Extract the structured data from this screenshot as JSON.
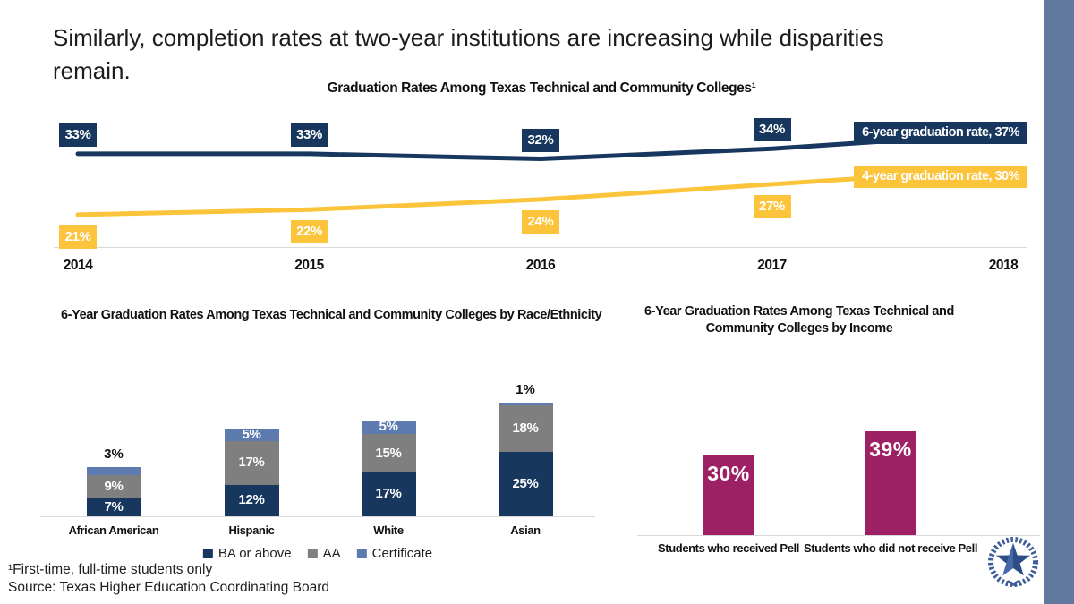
{
  "slide": {
    "title": "Similarly, completion rates at two-year institutions are increasing while disparities remain.",
    "title_lines": [
      "Similarly, completion rates at two-year institutions are increasing while disparities",
      "remain."
    ],
    "footnote": "¹First-time, full-time students only",
    "source": "Source: Texas Higher Education Coordinating Board",
    "sidebar_color": "#61789f",
    "logo_color": "#3d5c99",
    "text_color": "#111111",
    "axis_color": "#d9d9d9"
  },
  "chart_data": [
    {
      "type": "line",
      "title": "Graduation Rates Among Texas Technical and Community Colleges¹",
      "x": [
        2014,
        2015,
        2016,
        2017,
        2018
      ],
      "series": [
        {
          "name": "6-year graduation rate",
          "values": [
            33,
            33,
            32,
            34,
            37
          ],
          "color": "#17375e",
          "end_label": "6-year graduation rate, 37%"
        },
        {
          "name": "4-year graduation rate",
          "values": [
            21,
            22,
            24,
            27,
            30
          ],
          "color": "#fbc43b",
          "end_label": "4-year graduation rate, 30%"
        }
      ],
      "data_labels": "percent_boxes",
      "legend_position": "end-of-line",
      "grid": false,
      "ylim": [
        15,
        40
      ]
    },
    {
      "type": "stacked-bar",
      "title": "6-Year Graduation Rates Among Texas Technical and Community Colleges by Race/Ethnicity",
      "categories": [
        "African American",
        "Hispanic",
        "White",
        "Asian"
      ],
      "series": [
        {
          "name": "BA or above",
          "color": "#17375e",
          "values": [
            7,
            12,
            17,
            25
          ]
        },
        {
          "name": "AA",
          "color": "#7f7f7f",
          "values": [
            9,
            17,
            15,
            18
          ]
        },
        {
          "name": "Certificate",
          "color": "#5d7bae",
          "values": [
            3,
            5,
            5,
            1
          ]
        }
      ],
      "unit": "%",
      "legend_position": "bottom",
      "grid": false
    },
    {
      "type": "bar",
      "title": "6-Year Graduation Rates Among Texas Technical and Community Colleges by Income",
      "title_lines": [
        "6-Year Graduation Rates Among Texas Technical and",
        "Community Colleges by Income"
      ],
      "categories": [
        "Students who received Pell",
        "Students who did not receive Pell"
      ],
      "values": [
        30,
        39
      ],
      "color": "#9e2064",
      "unit": "%",
      "grid": false
    }
  ]
}
